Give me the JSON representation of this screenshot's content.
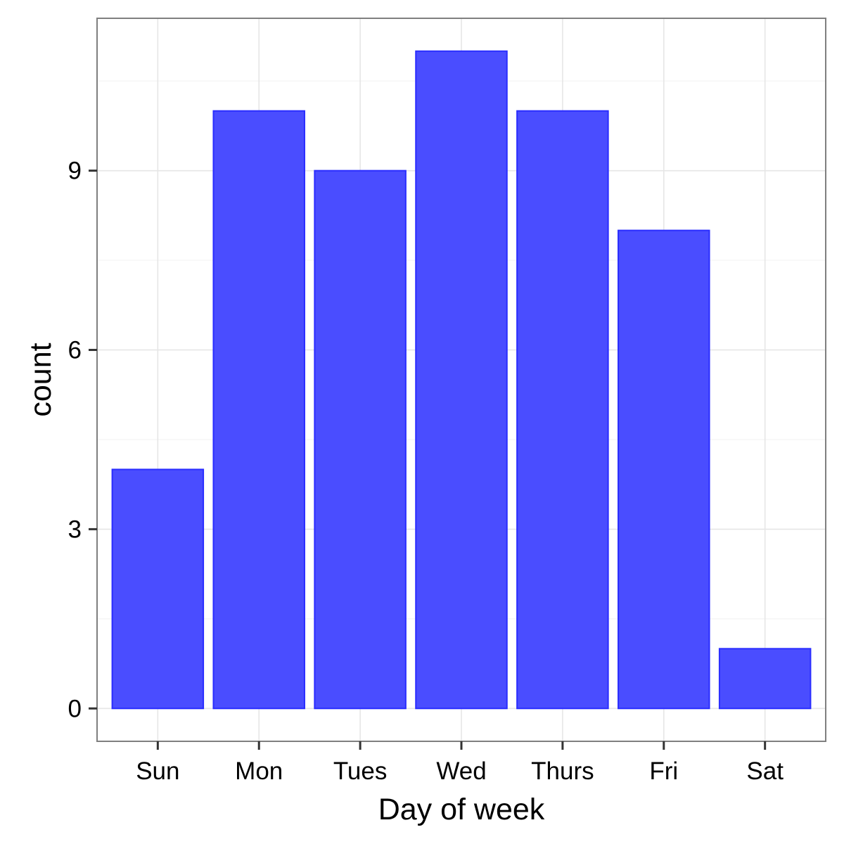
{
  "chart_data": {
    "type": "bar",
    "categories": [
      "Sun",
      "Mon",
      "Tues",
      "Wed",
      "Thurs",
      "Fri",
      "Sat"
    ],
    "values": [
      4,
      10,
      9,
      11,
      10,
      8,
      1
    ],
    "xlabel": "Day of week",
    "ylabel": "count",
    "ylim": [
      -0.55,
      11.55
    ],
    "yticks": [
      "0",
      "3",
      "6",
      "9"
    ],
    "grid": true,
    "legend": "none",
    "colors": {
      "bar_fill": "#4a4dff",
      "bar_stroke": "#2a2dff",
      "panel_border": "#7f7f7f",
      "grid_major": "#e6e6e6",
      "grid_minor": "#f3f3f3",
      "tick": "#333333"
    }
  }
}
